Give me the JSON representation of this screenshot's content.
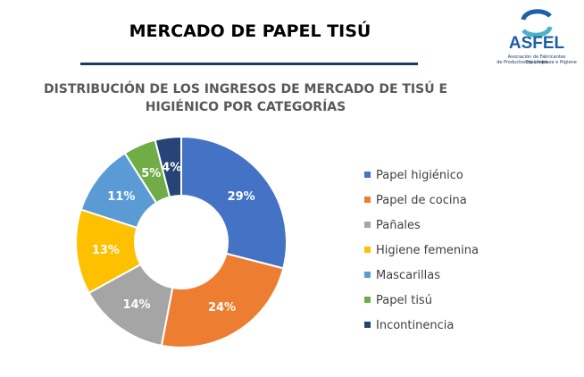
{
  "header": {
    "title": "MERCADO DE PAPEL TISÚ",
    "logo": "ASFEL",
    "logo_subtitle": [
      "Asociación de Fabricantes Españoles",
      "de Productos de Limpieza e Higiene"
    ]
  },
  "chart_data": {
    "type": "donut",
    "title": "DISTRIBUCIÓN DE LOS INGRESOS DE MERCADO  DE TISÚ E HIGIÉNICO POR CATEGORÍAS",
    "categories": [
      "Papel higiénico",
      "Papel de cocina",
      "Pañales",
      "Higiene femenina",
      "Mascarillas",
      "Papel tisú",
      "Incontinencia"
    ],
    "values": [
      29,
      24,
      14,
      13,
      11,
      5,
      4
    ],
    "value_labels": [
      "29%",
      "24%",
      "14%",
      "13%",
      "11%",
      "5%",
      "4%"
    ],
    "colors": [
      "#4472c4",
      "#ed7d31",
      "#a5a5a5",
      "#ffc000",
      "#5b9bd5",
      "#70ad47",
      "#264478"
    ],
    "legend": "right"
  }
}
